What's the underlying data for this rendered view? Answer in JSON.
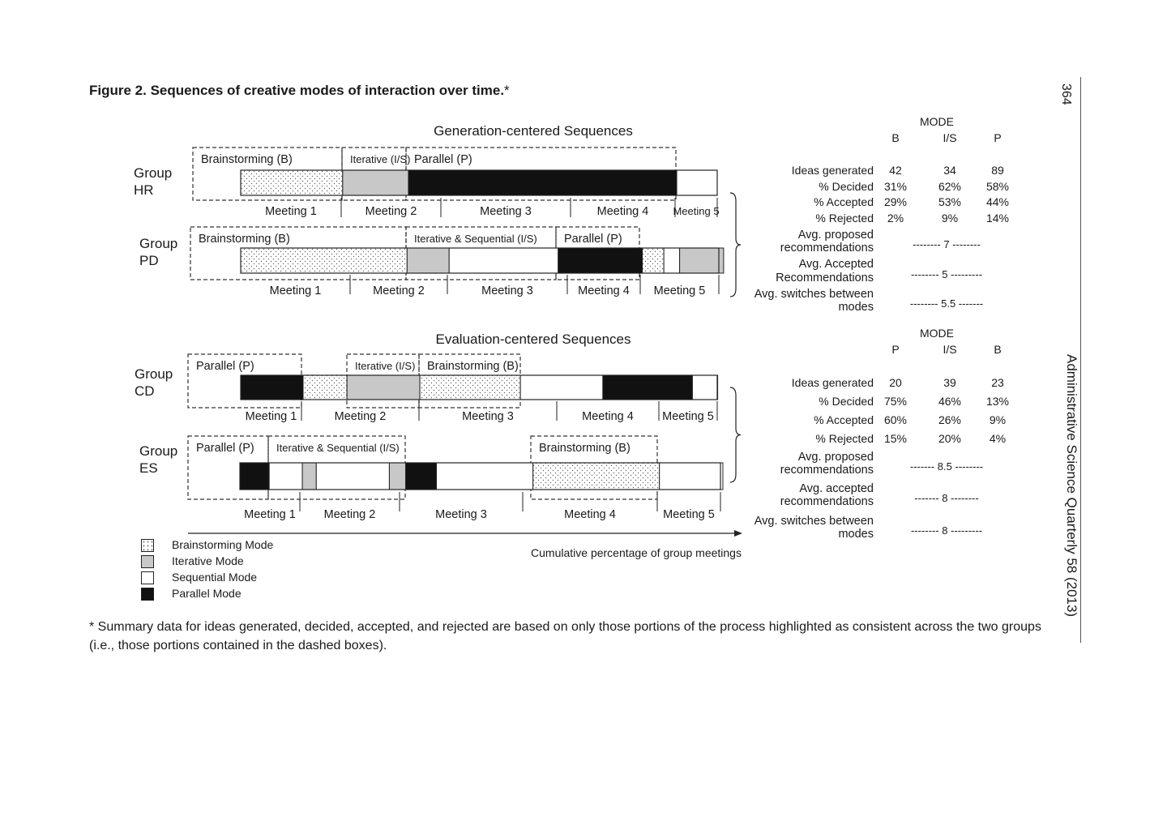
{
  "figure": {
    "title_bold": "Figure 2.  Sequences of creative modes of interaction over time.",
    "title_asterisk": "*",
    "page_number": "364",
    "journal": "Administrative Science Quarterly 58 (2013)",
    "footnote": "* Summary data for ideas generated, decided, accepted, and rejected are based on only those portions of the process highlighted as consistent across the two groups (i.e., those portions contained in the dashed boxes).",
    "axis_label": "Cumulative percentage of group meetings"
  },
  "legend": [
    {
      "label": "Brainstorming Mode",
      "mode": "B"
    },
    {
      "label": "Iterative Mode",
      "mode": "I"
    },
    {
      "label": "Sequential Mode",
      "mode": "S"
    },
    {
      "label": "Parallel Mode",
      "mode": "P"
    }
  ],
  "sections": [
    {
      "title": "Generation-centered Sequences",
      "groups": [
        {
          "name_line1": "Group",
          "name_line2": "HR",
          "segments": [
            [
              "B",
              0.214
            ],
            [
              "I",
              0.138
            ],
            [
              "P",
              0.563
            ],
            [
              "S",
              0.085
            ]
          ],
          "meetings": [
            "Meeting 1",
            "Meeting 2",
            "Meeting 3",
            "Meeting 4",
            "Meeting 5"
          ],
          "boxes": [
            "Brainstorming (B)",
            "Iterative (I/S)",
            "Parallel (P)"
          ]
        },
        {
          "name_line1": "Group",
          "name_line2": "PD",
          "segments": [
            [
              "B",
              0.348
            ],
            [
              "I",
              0.088
            ],
            [
              "S",
              0.228
            ],
            [
              "P",
              0.176
            ],
            [
              "B",
              0.045
            ],
            [
              "S",
              0.033
            ],
            [
              "I",
              0.092
            ]
          ],
          "meetings": [
            "Meeting 1",
            "Meeting 2",
            "Meeting 3",
            "Meeting 4",
            "Meeting 5"
          ],
          "boxes": [
            "Brainstorming (B)",
            "Iterative & Sequential (I/S)",
            "Parallel (P)"
          ]
        }
      ],
      "stats": {
        "mode_header": "MODE",
        "columns": [
          "B",
          "I/S",
          "P"
        ],
        "rows": [
          {
            "label": "Ideas generated",
            "values": [
              "42",
              "34",
              "89"
            ]
          },
          {
            "label": "% Decided",
            "values": [
              "31%",
              "62%",
              "58%"
            ]
          },
          {
            "label": "% Accepted",
            "values": [
              "29%",
              "53%",
              "44%"
            ]
          },
          {
            "label": "% Rejected",
            "values": [
              "2%",
              "9%",
              "14%"
            ]
          }
        ],
        "summary": [
          {
            "label_line1": "Avg. proposed",
            "label_line2": "recommendations",
            "value": "-------- 7 --------"
          },
          {
            "label_line1": "Avg. Accepted",
            "label_line2": "Recommendations",
            "value": "-------- 5 ---------"
          },
          {
            "label_line1": "Avg. switches between",
            "label_line2": "modes",
            "value": "-------- 5.5 -------"
          }
        ]
      }
    },
    {
      "title": "Evaluation-centered Sequences",
      "groups": [
        {
          "name_line1": "Group",
          "name_line2": "CD",
          "segments": [
            [
              "P",
              0.131
            ],
            [
              "B",
              0.092
            ],
            [
              "I",
              0.153
            ],
            [
              "B",
              0.211
            ],
            [
              "S",
              0.173
            ],
            [
              "P",
              0.188
            ],
            [
              "S",
              0.053
            ]
          ],
          "meetings": [
            "Meeting 1",
            "Meeting 2",
            "Meeting 3",
            "Meeting 4",
            "Meeting 5"
          ],
          "boxes": [
            "Parallel (P)",
            "Iterative (I/S)",
            "Brainstorming (B)"
          ]
        },
        {
          "name_line1": "Group",
          "name_line2": "ES",
          "segments": [
            [
              "P",
              0.061
            ],
            [
              "S",
              0.069
            ],
            [
              "I",
              0.029
            ],
            [
              "S",
              0.152
            ],
            [
              "I",
              0.034
            ],
            [
              "P",
              0.064
            ],
            [
              "S",
              0.201
            ],
            [
              "B",
              0.263
            ],
            [
              "S",
              0.132
            ]
          ],
          "meetings": [
            "Meeting 1",
            "Meeting 2",
            "Meeting 3",
            "Meeting 4",
            "Meeting 5"
          ],
          "boxes": [
            "Parallel (P)",
            "Iterative & Sequential (I/S)",
            "Brainstorming (B)"
          ]
        }
      ],
      "stats": {
        "mode_header": "MODE",
        "columns": [
          "P",
          "I/S",
          "B"
        ],
        "rows": [
          {
            "label": "Ideas generated",
            "values": [
              "20",
              "39",
              "23"
            ]
          },
          {
            "label": "% Decided",
            "values": [
              "75%",
              "46%",
              "13%"
            ]
          },
          {
            "label": "% Accepted",
            "values": [
              "60%",
              "26%",
              "9%"
            ]
          },
          {
            "label": "% Rejected",
            "values": [
              "15%",
              "20%",
              "4%"
            ]
          }
        ],
        "summary": [
          {
            "label_line1": "Avg. proposed",
            "label_line2": "recommendations",
            "value": "------- 8.5 --------"
          },
          {
            "label_line1": "Avg. accepted",
            "label_line2": "recommendations",
            "value": "------- 8 --------"
          },
          {
            "label_line1": "Avg. switches between",
            "label_line2": "modes",
            "value": "-------- 8 ---------"
          }
        ]
      }
    }
  ]
}
